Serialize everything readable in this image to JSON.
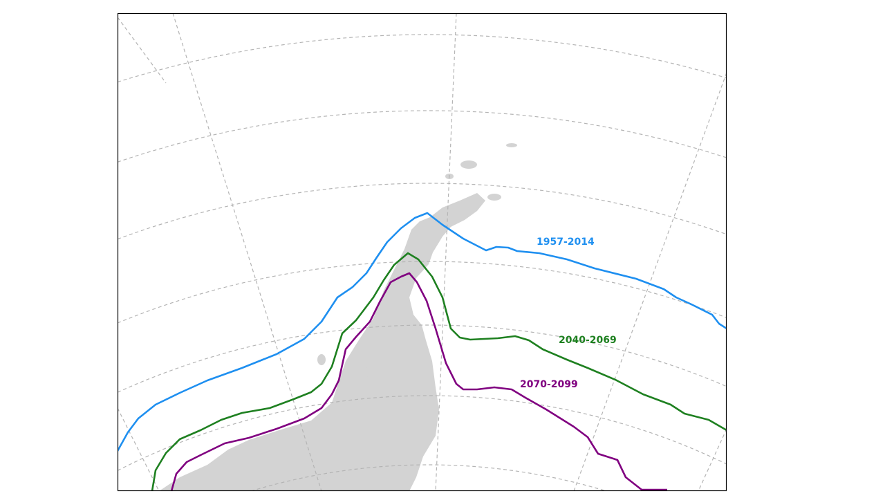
{
  "map": {
    "land_color": "#d3d3d3",
    "grid_color": "#b4b4b4",
    "series": [
      {
        "name": "1957-2014",
        "color": "#1e8ff0"
      },
      {
        "name": "2040-2069",
        "color": "#1e8020"
      },
      {
        "name": "2070-2099",
        "color": "#800080"
      }
    ]
  }
}
